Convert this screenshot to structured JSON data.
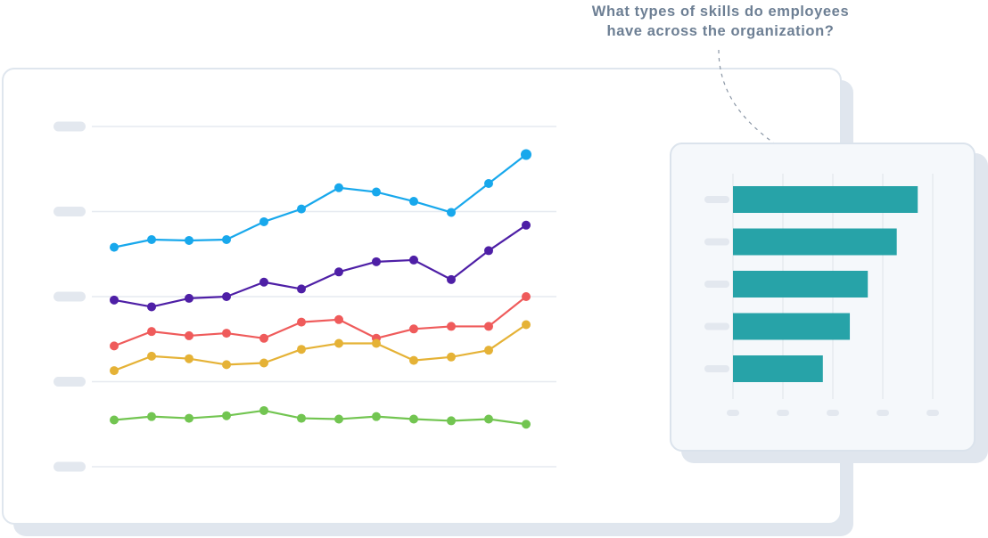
{
  "question": {
    "line1": "What types of skills do employees",
    "line2": "have across the organization?"
  },
  "colors": {
    "blue": "#18a8ec",
    "purple": "#4e1fa6",
    "red": "#ef5b5b",
    "yellow": "#e5b236",
    "green": "#72c551",
    "teal": "#27a3a8",
    "placeholder_tick": "#e3e8ef",
    "gridline": "#e6eaf0",
    "connector": "#8a96a5"
  },
  "chart_data": [
    {
      "type": "line",
      "title": "",
      "xlabel": "",
      "ylabel": "",
      "tick_labels_hidden": true,
      "x": [
        1,
        2,
        3,
        4,
        5,
        6,
        7,
        8,
        9,
        10,
        11,
        12
      ],
      "ylim": [
        0,
        4
      ],
      "grid": true,
      "series": [
        {
          "color": "#18a8ec",
          "values": [
            2.58,
            2.67,
            2.66,
            2.67,
            2.88,
            3.03,
            3.28,
            3.23,
            3.12,
            2.99,
            3.33,
            3.67
          ]
        },
        {
          "color": "#4e1fa6",
          "values": [
            1.96,
            1.88,
            1.98,
            2.0,
            2.17,
            2.09,
            2.29,
            2.41,
            2.43,
            2.2,
            2.54,
            2.84
          ]
        },
        {
          "color": "#ef5b5b",
          "values": [
            1.42,
            1.59,
            1.54,
            1.57,
            1.51,
            1.7,
            1.73,
            1.51,
            1.62,
            1.65,
            1.65,
            2.0
          ]
        },
        {
          "color": "#e5b236",
          "values": [
            1.13,
            1.3,
            1.27,
            1.2,
            1.22,
            1.38,
            1.45,
            1.45,
            1.25,
            1.29,
            1.37,
            1.67
          ]
        },
        {
          "color": "#72c551",
          "values": [
            0.55,
            0.59,
            0.57,
            0.6,
            0.66,
            0.57,
            0.56,
            0.59,
            0.56,
            0.54,
            0.56,
            0.5
          ]
        }
      ]
    },
    {
      "type": "bar",
      "orientation": "horizontal",
      "title": "",
      "tick_labels_hidden": true,
      "xlim": [
        0,
        4
      ],
      "values": [
        3.7,
        3.28,
        2.7,
        2.34,
        1.8
      ],
      "color": "#27a3a8",
      "grid": true
    }
  ]
}
